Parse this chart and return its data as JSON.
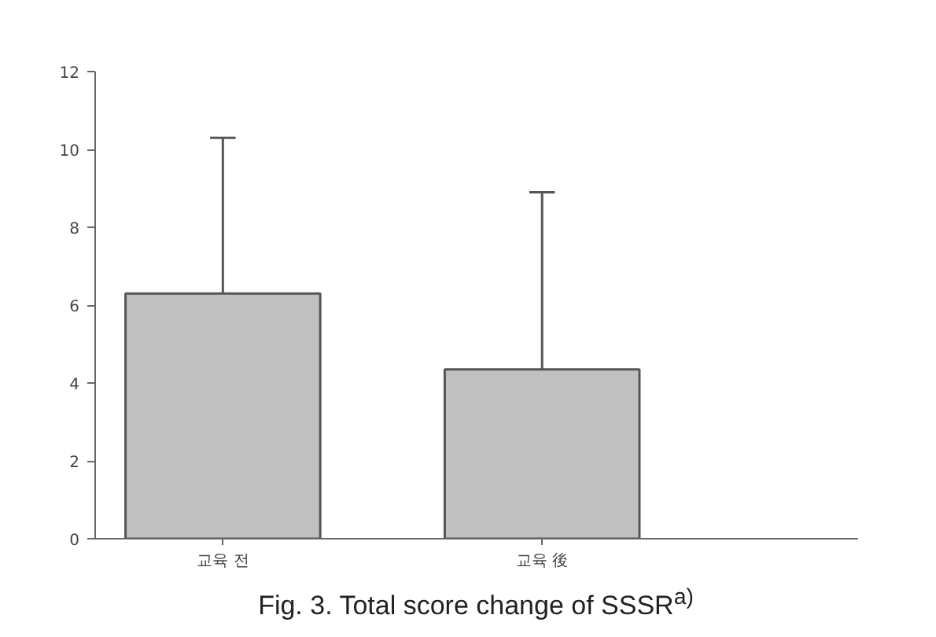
{
  "chart_data": {
    "type": "bar",
    "title": "Fig. 3.  Total score change of SSSR$^{a)}$",
    "categories": [
      "교육 전",
      "교육 後"
    ],
    "values": [
      6.3,
      4.35
    ],
    "errors": [
      [
        6.3,
        10.3
      ],
      [
        4.35,
        8.9
      ]
    ],
    "color": "#c0c0c0",
    "ylim": [
      0,
      12
    ],
    "yticks": [
      0,
      2,
      4,
      6,
      8,
      10,
      12
    ],
    "grid": false
  }
}
